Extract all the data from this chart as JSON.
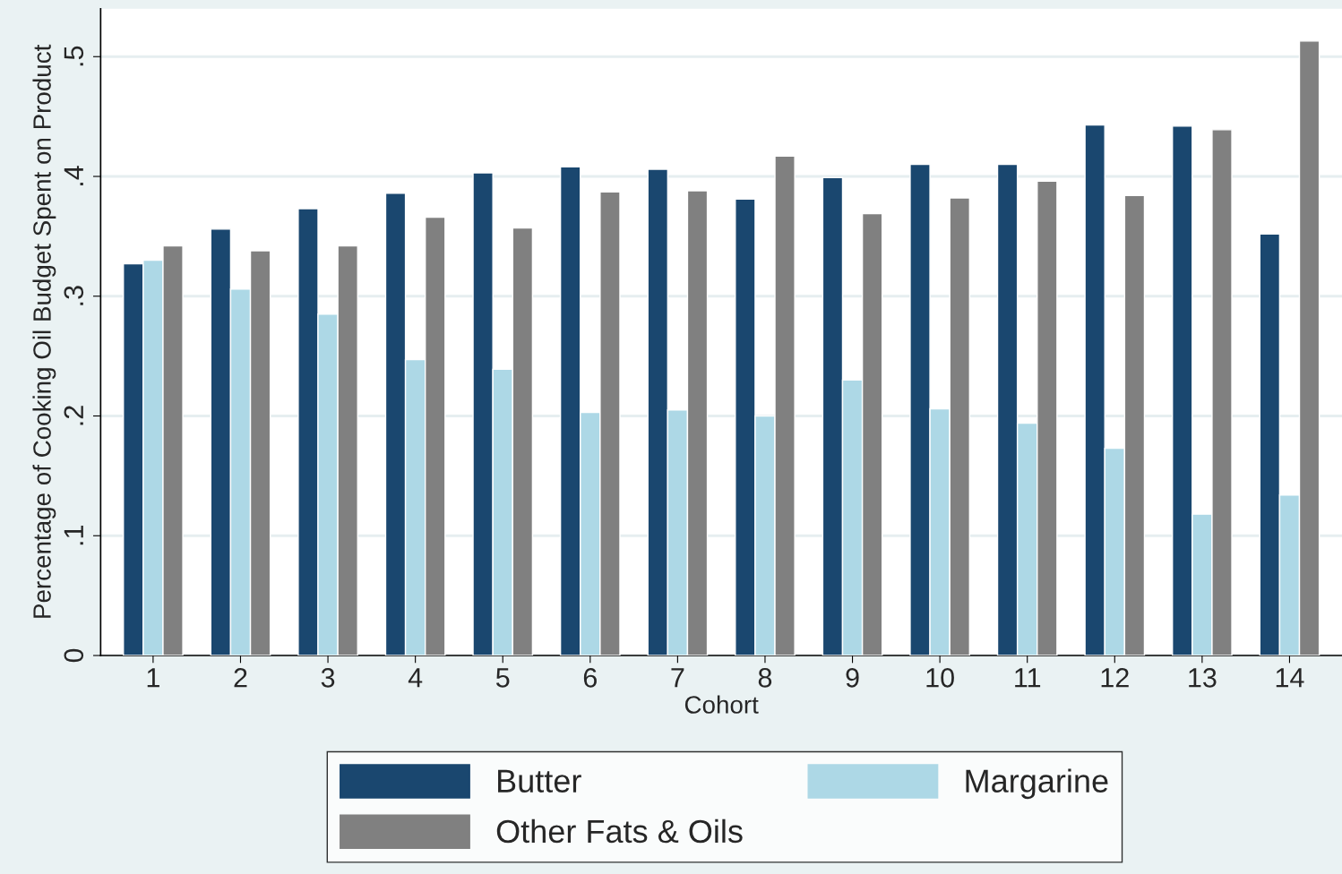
{
  "chart_data": {
    "type": "bar",
    "xlabel": "Cohort",
    "ylabel": "Percentage of Cooking Oil Budget Spent on Product",
    "categories": [
      "1",
      "2",
      "3",
      "4",
      "5",
      "6",
      "7",
      "8",
      "9",
      "10",
      "11",
      "12",
      "13",
      "14"
    ],
    "series": [
      {
        "name": "Butter",
        "color": "#1a476f",
        "values": [
          0.327,
          0.356,
          0.373,
          0.386,
          0.403,
          0.408,
          0.406,
          0.381,
          0.399,
          0.41,
          0.41,
          0.443,
          0.442,
          0.352
        ]
      },
      {
        "name": "Margarine",
        "color": "#add8e6",
        "values": [
          0.33,
          0.306,
          0.285,
          0.247,
          0.239,
          0.203,
          0.205,
          0.2,
          0.23,
          0.206,
          0.194,
          0.173,
          0.118,
          0.134
        ]
      },
      {
        "name": "Other Fats & Oils",
        "color": "#808080",
        "values": [
          0.342,
          0.338,
          0.342,
          0.366,
          0.357,
          0.387,
          0.388,
          0.417,
          0.369,
          0.382,
          0.396,
          0.384,
          0.439,
          0.513
        ]
      }
    ],
    "ylim": [
      0,
      0.54
    ],
    "yticks": [
      {
        "value": 0,
        "label": "0"
      },
      {
        "value": 0.1,
        "label": ".1"
      },
      {
        "value": 0.2,
        "label": ".2"
      },
      {
        "value": 0.3,
        "label": ".3"
      },
      {
        "value": 0.4,
        "label": ".4"
      },
      {
        "value": 0.5,
        "label": ".5"
      }
    ],
    "grid": "y",
    "legend": "bottom"
  }
}
